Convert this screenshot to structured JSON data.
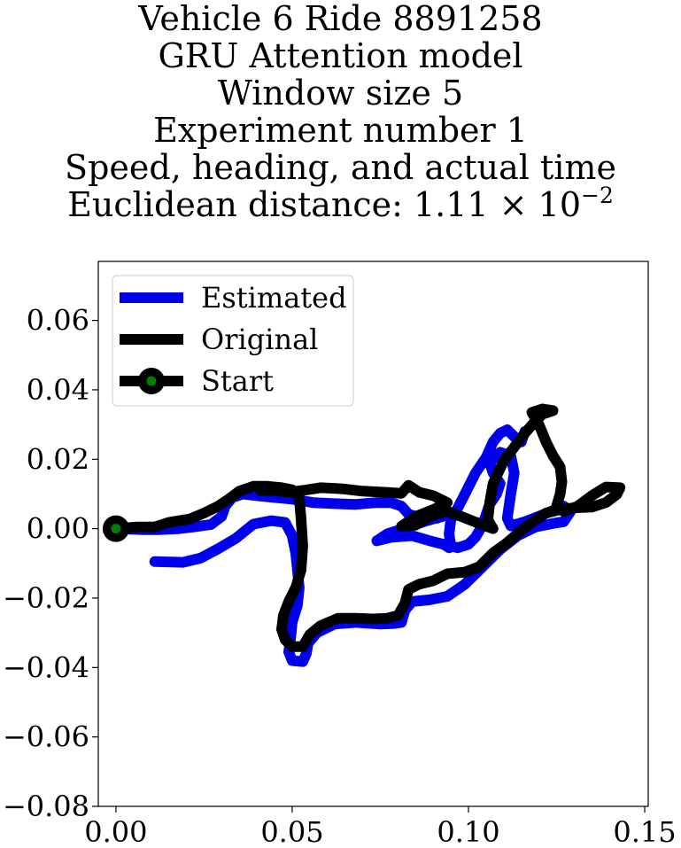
{
  "chart_data": {
    "type": "line",
    "title_lines": [
      "Vehicle 6 Ride 8891258",
      "GRU Attention model",
      "Window size 5",
      "Experiment number 1",
      "Speed, heading, and actual time"
    ],
    "euclidean_prefix": "Euclidean distance: 1.11",
    "euclidean_times": "×",
    "euclidean_base": "10",
    "euclidean_exponent": "−2",
    "xlim": [
      -0.005,
      0.151
    ],
    "ylim": [
      -0.08,
      0.077
    ],
    "xticks": [
      {
        "value": 0.0,
        "label": "0.00"
      },
      {
        "value": 0.05,
        "label": "0.05"
      },
      {
        "value": 0.1,
        "label": "0.10"
      },
      {
        "value": 0.15,
        "label": "0.15"
      }
    ],
    "yticks": [
      {
        "value": 0.06,
        "label": "0.06"
      },
      {
        "value": 0.04,
        "label": "0.04"
      },
      {
        "value": 0.02,
        "label": "0.02"
      },
      {
        "value": 0.0,
        "label": "0.00"
      },
      {
        "value": -0.02,
        "label": "−0.02"
      },
      {
        "value": -0.04,
        "label": "−0.04"
      },
      {
        "value": -0.06,
        "label": "−0.06"
      },
      {
        "value": -0.08,
        "label": "−0.08"
      }
    ],
    "grid": false,
    "legend_position": "top-left",
    "series": [
      {
        "name": "Estimated",
        "color": "#0000ee",
        "points": [
          [
            0.011,
            -0.0095
          ],
          [
            0.019,
            -0.0097
          ],
          [
            0.024,
            -0.0085
          ],
          [
            0.029,
            -0.0058
          ],
          [
            0.034,
            -0.0028
          ],
          [
            0.039,
            0.0013
          ],
          [
            0.044,
            0.0023
          ],
          [
            0.048,
            0.0018
          ],
          [
            0.05,
            -0.002
          ],
          [
            0.051,
            -0.007
          ],
          [
            0.0515,
            -0.012
          ],
          [
            0.052,
            -0.017
          ],
          [
            0.0515,
            -0.022
          ],
          [
            0.05,
            -0.027
          ],
          [
            0.0495,
            -0.032
          ],
          [
            0.049,
            -0.0355
          ],
          [
            0.05,
            -0.038
          ],
          [
            0.053,
            -0.0383
          ],
          [
            0.054,
            -0.036
          ],
          [
            0.0545,
            -0.033
          ],
          [
            0.057,
            -0.03
          ],
          [
            0.062,
            -0.0275
          ],
          [
            0.068,
            -0.027
          ],
          [
            0.075,
            -0.0275
          ],
          [
            0.079,
            -0.0273
          ],
          [
            0.081,
            -0.027
          ],
          [
            0.082,
            -0.0235
          ],
          [
            0.084,
            -0.021
          ],
          [
            0.089,
            -0.0205
          ],
          [
            0.094,
            -0.0195
          ],
          [
            0.099,
            -0.016
          ],
          [
            0.104,
            -0.011
          ],
          [
            0.109,
            -0.006
          ],
          [
            0.114,
            -0.002
          ],
          [
            0.119,
            0.0005
          ],
          [
            0.124,
            0.0015
          ],
          [
            0.127,
            0.002
          ],
          [
            0.129,
            0.005
          ],
          [
            0.127,
            0.0065
          ],
          [
            0.121,
            0.004
          ],
          [
            0.116,
            0.002
          ],
          [
            0.112,
            0.0008
          ],
          [
            0.111,
            0.003
          ],
          [
            0.112,
            0.01
          ],
          [
            0.113,
            0.016
          ],
          [
            0.112,
            0.021
          ],
          [
            0.109,
            0.022
          ],
          [
            0.106,
            0.019
          ],
          [
            0.107,
            0.016
          ],
          [
            0.109,
            0.013
          ],
          [
            0.108,
            0.01
          ],
          [
            0.106,
            0.007
          ],
          [
            0.104,
            0.001
          ],
          [
            0.102,
            -0.0025
          ],
          [
            0.1,
            -0.0045
          ],
          [
            0.097,
            -0.0055
          ],
          [
            0.095,
            -0.005
          ],
          [
            0.0945,
            -0.0015
          ],
          [
            0.095,
            0.0025
          ],
          [
            0.097,
            0.006
          ],
          [
            0.099,
            0.01
          ],
          [
            0.102,
            0.016
          ],
          [
            0.105,
            0.0205
          ],
          [
            0.107,
            0.025
          ],
          [
            0.109,
            0.0275
          ],
          [
            0.111,
            0.0285
          ],
          [
            0.113,
            0.0265
          ],
          [
            0.115,
            0.025
          ],
          [
            0.116,
            0.028
          ]
        ]
      },
      {
        "name": "Estimated",
        "color": "#0000ee",
        "points": [
          [
            0.0,
            0.0
          ],
          [
            0.008,
            -0.0003
          ],
          [
            0.012,
            -0.0003
          ],
          [
            0.018,
            0.0
          ],
          [
            0.022,
            0.0005
          ],
          [
            0.027,
            0.0012
          ],
          [
            0.03,
            0.0035
          ],
          [
            0.031,
            0.0065
          ],
          [
            0.033,
            0.009
          ],
          [
            0.036,
            0.01
          ],
          [
            0.04,
            0.0095
          ],
          [
            0.045,
            0.009
          ],
          [
            0.05,
            0.0085
          ],
          [
            0.056,
            0.0075
          ],
          [
            0.062,
            0.0072
          ],
          [
            0.068,
            0.007
          ],
          [
            0.074,
            0.0075
          ],
          [
            0.078,
            0.0075
          ],
          [
            0.081,
            0.0065
          ],
          [
            0.083,
            0.0042
          ],
          [
            0.087,
            0.003
          ],
          [
            0.091,
            0.003
          ],
          [
            0.094,
            0.004
          ],
          [
            0.096,
            0.0045
          ],
          [
            0.094,
            0.004
          ],
          [
            0.088,
            0.0022
          ],
          [
            0.083,
            0.0005
          ],
          [
            0.077,
            -0.0015
          ],
          [
            0.074,
            -0.0035
          ],
          [
            0.078,
            -0.0025
          ],
          [
            0.084,
            -0.002
          ],
          [
            0.089,
            -0.0035
          ],
          [
            0.093,
            -0.0045
          ],
          [
            0.0945,
            -0.0055
          ]
        ]
      },
      {
        "name": "Original",
        "color": "#000000",
        "points": [
          [
            0.0,
            0.0
          ],
          [
            0.006,
            0.0005
          ],
          [
            0.011,
            0.0005
          ],
          [
            0.015,
            0.0018
          ],
          [
            0.021,
            0.0028
          ],
          [
            0.025,
            0.0045
          ],
          [
            0.029,
            0.0065
          ],
          [
            0.032,
            0.0085
          ],
          [
            0.035,
            0.0108
          ],
          [
            0.039,
            0.0122
          ],
          [
            0.043,
            0.0122
          ],
          [
            0.047,
            0.0118
          ],
          [
            0.05,
            0.0112
          ],
          [
            0.052,
            0.009
          ],
          [
            0.0525,
            0.003
          ],
          [
            0.053,
            -0.005
          ],
          [
            0.0525,
            -0.012
          ],
          [
            0.051,
            -0.017
          ],
          [
            0.049,
            -0.021
          ],
          [
            0.0475,
            -0.025
          ],
          [
            0.047,
            -0.029
          ],
          [
            0.048,
            -0.032
          ],
          [
            0.05,
            -0.034
          ],
          [
            0.053,
            -0.034
          ],
          [
            0.055,
            -0.0305
          ],
          [
            0.058,
            -0.028
          ],
          [
            0.063,
            -0.0258
          ],
          [
            0.068,
            -0.0258
          ],
          [
            0.073,
            -0.026
          ],
          [
            0.077,
            -0.0258
          ],
          [
            0.08,
            -0.025
          ],
          [
            0.082,
            -0.0215
          ],
          [
            0.083,
            -0.0175
          ],
          [
            0.086,
            -0.016
          ],
          [
            0.09,
            -0.015
          ],
          [
            0.094,
            -0.013
          ],
          [
            0.099,
            -0.0125
          ],
          [
            0.103,
            -0.011
          ],
          [
            0.107,
            -0.007
          ],
          [
            0.111,
            -0.004
          ],
          [
            0.115,
            -0.0005
          ],
          [
            0.119,
            0.0025
          ],
          [
            0.122,
            0.0045
          ],
          [
            0.126,
            0.0055
          ],
          [
            0.13,
            0.006
          ],
          [
            0.135,
            0.0062
          ],
          [
            0.139,
            0.0075
          ],
          [
            0.142,
            0.0098
          ],
          [
            0.143,
            0.0118
          ],
          [
            0.139,
            0.012
          ],
          [
            0.135,
            0.0095
          ],
          [
            0.131,
            0.0065
          ],
          [
            0.127,
            0.005
          ],
          [
            0.125,
            0.0065
          ],
          [
            0.126,
            0.01
          ],
          [
            0.1265,
            0.0135
          ],
          [
            0.126,
            0.0178
          ],
          [
            0.124,
            0.021
          ],
          [
            0.122,
            0.025
          ],
          [
            0.12,
            0.03
          ],
          [
            0.118,
            0.0335
          ],
          [
            0.121,
            0.0345
          ],
          [
            0.124,
            0.034
          ],
          [
            0.121,
            0.033
          ],
          [
            0.119,
            0.031
          ],
          [
            0.116,
            0.0275
          ],
          [
            0.113,
            0.0235
          ],
          [
            0.11,
            0.0195
          ],
          [
            0.107,
            0.013
          ],
          [
            0.106,
            0.0075
          ],
          [
            0.1055,
            0.0025
          ],
          [
            0.107,
            0.0
          ],
          [
            0.103,
            0.0015
          ],
          [
            0.098,
            0.0035
          ],
          [
            0.094,
            0.005
          ],
          [
            0.089,
            0.0035
          ],
          [
            0.085,
            0.001
          ],
          [
            0.081,
            0.0007
          ],
          [
            0.085,
            0.0035
          ],
          [
            0.09,
            0.0055
          ],
          [
            0.094,
            0.0075
          ],
          [
            0.09,
            0.0095
          ],
          [
            0.086,
            0.0105
          ],
          [
            0.083,
            0.0125
          ],
          [
            0.081,
            0.0102
          ],
          [
            0.076,
            0.0105
          ],
          [
            0.07,
            0.0108
          ],
          [
            0.064,
            0.0115
          ],
          [
            0.058,
            0.0118
          ],
          [
            0.053,
            0.011
          ],
          [
            0.049,
            0.0105
          ],
          [
            0.045,
            0.011
          ],
          [
            0.041,
            0.011
          ]
        ]
      }
    ],
    "legend": [
      {
        "label": "Estimated",
        "color": "#0000ee",
        "marker": false
      },
      {
        "label": "Original",
        "color": "#000000",
        "marker": false
      },
      {
        "label": "Start",
        "color": "#000000",
        "marker": true,
        "marker_color": "#008000"
      }
    ],
    "start_point": [
      0.0,
      0.0
    ]
  }
}
